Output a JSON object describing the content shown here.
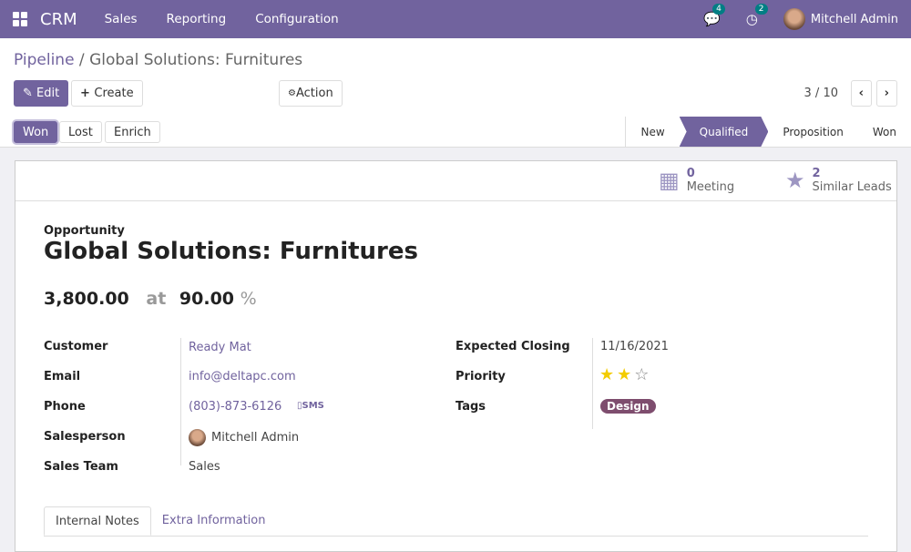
{
  "nav": {
    "app": "CRM",
    "menus": [
      "Sales",
      "Reporting",
      "Configuration"
    ],
    "messages_count": "4",
    "activities_count": "2",
    "user": "Mitchell Admin"
  },
  "breadcrumb": {
    "parent": "Pipeline",
    "current": "Global Solutions: Furnitures"
  },
  "toolbar": {
    "edit": "Edit",
    "create": "Create",
    "action": "Action",
    "pager": "3 / 10"
  },
  "status_buttons": [
    "Won",
    "Lost",
    "Enrich"
  ],
  "stages": [
    {
      "label": "New",
      "active": false
    },
    {
      "label": "Qualified",
      "active": true
    },
    {
      "label": "Proposition",
      "active": false
    },
    {
      "label": "Won",
      "active": false
    }
  ],
  "smart_buttons": [
    {
      "count": "0",
      "label": "Meeting",
      "icon": "calendar-icon"
    },
    {
      "count": "2",
      "label": "Similar Leads",
      "icon": "star-icon"
    }
  ],
  "record": {
    "type": "Opportunity",
    "name": "Global Solutions: Furnitures",
    "revenue": "3,800.00",
    "at": "at",
    "probability": "90.00",
    "percent": "%"
  },
  "fields": {
    "customer_label": "Customer",
    "customer": "Ready Mat",
    "email_label": "Email",
    "email": "info@deltapc.com",
    "phone_label": "Phone",
    "phone": "(803)-873-6126",
    "sms": "SMS",
    "salesperson_label": "Salesperson",
    "salesperson": "Mitchell Admin",
    "team_label": "Sales Team",
    "team": "Sales",
    "closing_label": "Expected Closing",
    "closing": "11/16/2021",
    "priority_label": "Priority",
    "priority_stars": 2,
    "priority_max": 3,
    "tags_label": "Tags",
    "tag": "Design",
    "tag_color": "#7e4d6e"
  },
  "tabs": [
    "Internal Notes",
    "Extra Information"
  ],
  "colors": {
    "brand": "#71639e",
    "badge": "#017e84",
    "star": "#f3cc00"
  }
}
